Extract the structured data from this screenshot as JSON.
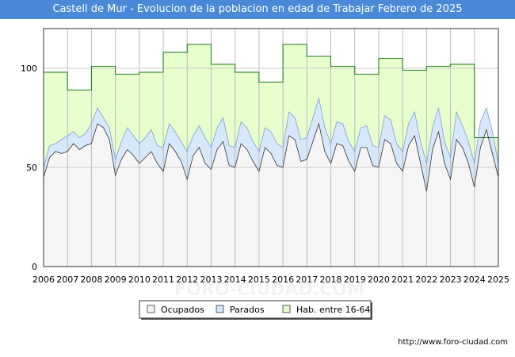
{
  "title": "Castell de Mur - Evolucion de la poblacion en edad de Trabajar Febrero de 2025",
  "credit": "http://www.foro-ciudad.com",
  "watermark": "FORO-CIUDAD.COM",
  "chart_data": {
    "type": "area",
    "title": "Castell de Mur - Evolucion de la poblacion en edad de Trabajar Febrero de 2025",
    "xlabel": "",
    "ylabel": "",
    "xlim": [
      2006,
      2025
    ],
    "ylim": [
      0,
      120
    ],
    "yticks": [
      0,
      50,
      100
    ],
    "xticks": [
      "2006",
      "2007",
      "2008",
      "2009",
      "2010",
      "2011",
      "2012",
      "2013",
      "2014",
      "2015",
      "2016",
      "2017",
      "2018",
      "2019",
      "2020",
      "2021",
      "2022",
      "2023",
      "2024",
      "2025"
    ],
    "grid": true,
    "legend_position": "bottom",
    "series": [
      {
        "name": "Hab. entre 16-64",
        "color": "#e6ffcc",
        "line_color": "#1a7a1a",
        "kind": "step",
        "x": [
          2006,
          2007,
          2008,
          2009,
          2010,
          2011,
          2012,
          2013,
          2014,
          2015,
          2016,
          2017,
          2018,
          2019,
          2020,
          2021,
          2022,
          2023,
          2024
        ],
        "values": [
          98,
          89,
          101,
          97,
          98,
          108,
          112,
          102,
          98,
          93,
          112,
          106,
          101,
          97,
          105,
          99,
          101,
          102,
          65
        ]
      },
      {
        "name": "Parados",
        "color": "#d6e8fa",
        "line_color": "#7a9fd4",
        "kind": "line",
        "x": [
          2006,
          2006.25,
          2006.5,
          2006.75,
          2007,
          2007.25,
          2007.5,
          2007.75,
          2008,
          2008.25,
          2008.5,
          2008.75,
          2009,
          2009.25,
          2009.5,
          2009.75,
          2010,
          2010.25,
          2010.5,
          2010.75,
          2011,
          2011.25,
          2011.5,
          2011.75,
          2012,
          2012.25,
          2012.5,
          2012.75,
          2013,
          2013.25,
          2013.5,
          2013.75,
          2014,
          2014.25,
          2014.5,
          2014.75,
          2015,
          2015.25,
          2015.5,
          2015.75,
          2016,
          2016.25,
          2016.5,
          2016.75,
          2017,
          2017.25,
          2017.5,
          2017.75,
          2018,
          2018.25,
          2018.5,
          2018.75,
          2019,
          2019.25,
          2019.5,
          2019.75,
          2020,
          2020.25,
          2020.5,
          2020.75,
          2021,
          2021.25,
          2021.5,
          2021.75,
          2022,
          2022.25,
          2022.5,
          2022.75,
          2023,
          2023.25,
          2023.5,
          2023.75,
          2024,
          2024.25,
          2024.5,
          2024.75,
          2025
        ],
        "values": [
          50,
          61,
          62,
          64,
          66,
          68,
          65,
          67,
          72,
          80,
          75,
          70,
          54,
          63,
          70,
          66,
          62,
          65,
          69,
          61,
          60,
          72,
          68,
          63,
          58,
          66,
          71,
          65,
          60,
          70,
          75,
          61,
          60,
          73,
          70,
          63,
          58,
          70,
          68,
          62,
          60,
          78,
          75,
          64,
          65,
          75,
          85,
          70,
          62,
          73,
          72,
          63,
          58,
          70,
          71,
          61,
          60,
          76,
          74,
          62,
          58,
          72,
          78,
          63,
          52,
          70,
          80,
          63,
          55,
          78,
          71,
          63,
          52,
          73,
          80,
          68,
          52
        ]
      },
      {
        "name": "Ocupados",
        "color": "#f5f5f5",
        "line_color": "#333333",
        "kind": "line",
        "x": [
          2006,
          2006.25,
          2006.5,
          2006.75,
          2007,
          2007.25,
          2007.5,
          2007.75,
          2008,
          2008.25,
          2008.5,
          2008.75,
          2009,
          2009.25,
          2009.5,
          2009.75,
          2010,
          2010.25,
          2010.5,
          2010.75,
          2011,
          2011.25,
          2011.5,
          2011.75,
          2012,
          2012.25,
          2012.5,
          2012.75,
          2013,
          2013.25,
          2013.5,
          2013.75,
          2014,
          2014.25,
          2014.5,
          2014.75,
          2015,
          2015.25,
          2015.5,
          2015.75,
          2016,
          2016.25,
          2016.5,
          2016.75,
          2017,
          2017.25,
          2017.5,
          2017.75,
          2018,
          2018.25,
          2018.5,
          2018.75,
          2019,
          2019.25,
          2019.5,
          2019.75,
          2020,
          2020.25,
          2020.5,
          2020.75,
          2021,
          2021.25,
          2021.5,
          2021.75,
          2022,
          2022.25,
          2022.5,
          2022.75,
          2023,
          2023.25,
          2023.5,
          2023.75,
          2024,
          2024.25,
          2024.5,
          2024.75,
          2025
        ],
        "values": [
          45,
          55,
          58,
          57,
          58,
          62,
          59,
          61,
          62,
          72,
          70,
          64,
          46,
          54,
          59,
          56,
          52,
          55,
          58,
          52,
          48,
          62,
          58,
          53,
          44,
          56,
          60,
          52,
          49,
          59,
          63,
          51,
          50,
          62,
          59,
          53,
          48,
          60,
          57,
          51,
          50,
          66,
          64,
          53,
          54,
          63,
          72,
          58,
          52,
          62,
          61,
          53,
          48,
          60,
          60,
          51,
          50,
          64,
          62,
          52,
          48,
          61,
          66,
          52,
          38,
          59,
          68,
          52,
          44,
          64,
          60,
          52,
          40,
          60,
          69,
          57,
          45
        ]
      }
    ]
  }
}
